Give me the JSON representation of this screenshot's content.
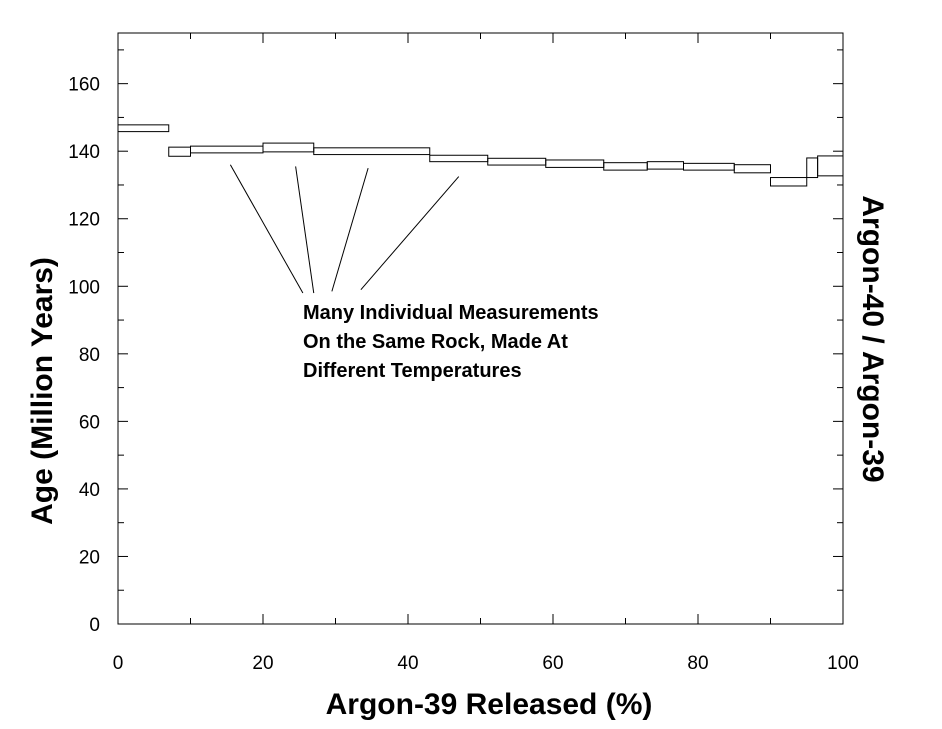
{
  "chart_data": {
    "type": "line",
    "xlabel": "Argon-39 Released (%)",
    "ylabel": "Age (Million Years)",
    "y2label": "Argon-40 / Argon-39",
    "xlim": [
      0,
      100
    ],
    "ylim": [
      0,
      175
    ],
    "xticks": [
      0,
      20,
      40,
      60,
      80,
      100
    ],
    "yticks": [
      0,
      20,
      40,
      60,
      80,
      100,
      120,
      140,
      160
    ],
    "grid": false,
    "legend": "none",
    "steps": [
      {
        "x_start": 0,
        "x_end": 7,
        "age_upper": 147.8,
        "age_lower": 145.8
      },
      {
        "x_start": 7,
        "x_end": 10,
        "age_upper": 141.2,
        "age_lower": 138.5
      },
      {
        "x_start": 10,
        "x_end": 20,
        "age_upper": 141.5,
        "age_lower": 139.5
      },
      {
        "x_start": 20,
        "x_end": 27,
        "age_upper": 142.4,
        "age_lower": 139.8
      },
      {
        "x_start": 27,
        "x_end": 43,
        "age_upper": 141.0,
        "age_lower": 139.0
      },
      {
        "x_start": 43,
        "x_end": 51,
        "age_upper": 138.8,
        "age_lower": 136.9
      },
      {
        "x_start": 51,
        "x_end": 59,
        "age_upper": 137.9,
        "age_lower": 135.9
      },
      {
        "x_start": 59,
        "x_end": 67,
        "age_upper": 137.4,
        "age_lower": 135.2
      },
      {
        "x_start": 67,
        "x_end": 73,
        "age_upper": 136.6,
        "age_lower": 134.4
      },
      {
        "x_start": 73,
        "x_end": 78,
        "age_upper": 136.9,
        "age_lower": 134.7
      },
      {
        "x_start": 78,
        "x_end": 85,
        "age_upper": 136.4,
        "age_lower": 134.4
      },
      {
        "x_start": 85,
        "x_end": 90,
        "age_upper": 136.0,
        "age_lower": 133.6
      },
      {
        "x_start": 90,
        "x_end": 95,
        "age_upper": 132.2,
        "age_lower": 129.7
      },
      {
        "x_start": 95,
        "x_end": 96.5,
        "age_upper": 138.0,
        "age_lower": 132.2
      },
      {
        "x_start": 96.5,
        "x_end": 100,
        "age_upper": 138.6,
        "age_lower": 132.7
      }
    ],
    "annotation": {
      "lines": [
        "Many Individual Measurements",
        "On the Same Rock, Made At",
        "Different Temperatures"
      ],
      "pointer_segments": [
        {
          "from": [
            15.5,
            136.0
          ],
          "to": [
            25.5,
            98.0
          ]
        },
        {
          "from": [
            24.5,
            135.5
          ],
          "to": [
            27.0,
            98.0
          ]
        },
        {
          "from": [
            34.5,
            135.0
          ],
          "to": [
            29.5,
            98.5
          ]
        },
        {
          "from": [
            47.0,
            132.5
          ],
          "to": [
            33.5,
            99.0
          ]
        }
      ]
    }
  }
}
